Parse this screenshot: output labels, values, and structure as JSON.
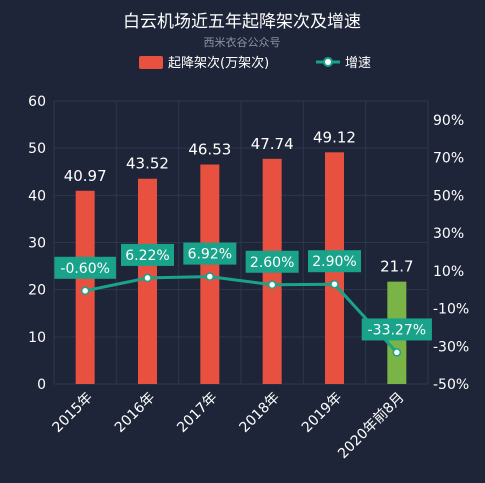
{
  "chart_data": {
    "type": "bar",
    "title": "白云机场近五年起降架次及增速",
    "subtitle": "西米衣谷公众号",
    "categories": [
      "2015年",
      "2016年",
      "2017年",
      "2018年",
      "2019年",
      "2020年前8月"
    ],
    "series": [
      {
        "name": "起降架次(万架次)",
        "type": "bar",
        "axis": "left",
        "values": [
          40.97,
          43.52,
          46.53,
          47.74,
          49.12,
          21.7
        ],
        "value_labels": [
          "40.97",
          "43.52",
          "46.53",
          "47.74",
          "49.12",
          "21.7"
        ],
        "colors": [
          "#e8503f",
          "#e8503f",
          "#e8503f",
          "#e8503f",
          "#e8503f",
          "#7bb446"
        ]
      },
      {
        "name": "增速",
        "type": "line",
        "axis": "right",
        "values": [
          -0.6,
          6.22,
          6.92,
          2.6,
          2.9,
          -33.27
        ],
        "value_labels": [
          "-0.60%",
          "6.22%",
          "6.92%",
          "2.60%",
          "2.90%",
          "-33.27%"
        ],
        "color": "#1aa38b"
      }
    ],
    "y_left": {
      "ylim": [
        0,
        60
      ],
      "ticks": [
        "0",
        "10",
        "20",
        "30",
        "40",
        "50",
        "60"
      ]
    },
    "y_right": {
      "ylim": [
        -50,
        100
      ],
      "ticks": [
        "-50%",
        "-30%",
        "-10%",
        "10%",
        "30%",
        "50%",
        "70%",
        "90%"
      ],
      "tick_values": [
        -50,
        -30,
        -10,
        10,
        30,
        50,
        70,
        90
      ]
    },
    "legend_position": "top-center",
    "grid": true
  },
  "colors": {
    "background": "#1f2538",
    "grid": "#2e364b",
    "text": "#ffffff",
    "subtitle": "#8a93a6",
    "bar": "#e8503f",
    "bar_highlight": "#7bb446",
    "line": "#1aa38b"
  }
}
